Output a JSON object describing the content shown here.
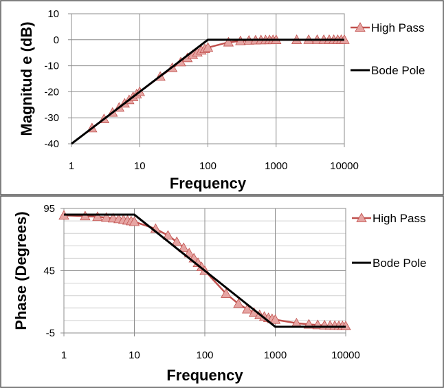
{
  "chart_data": [
    {
      "type": "line",
      "xscale": "log",
      "xlabel": "Frequency",
      "ylabel": "Magnitud e (dB)",
      "xlim": [
        1,
        10000
      ],
      "ylim": [
        -40,
        10
      ],
      "xticks": [
        "1",
        "10",
        "100",
        "1000",
        "10000"
      ],
      "yticks": [
        "10",
        "0",
        "-10",
        "-20",
        "-30",
        "-40"
      ],
      "grid": true,
      "legend": "right",
      "series": [
        {
          "name": "High Pass",
          "color": "#c0504d",
          "marker": "triangle",
          "x": [
            2,
            3,
            4,
            5,
            6,
            7,
            8,
            9,
            10,
            20,
            30,
            40,
            50,
            60,
            70,
            80,
            90,
            100,
            200,
            300,
            400,
            500,
            600,
            700,
            800,
            900,
            1000,
            2000,
            3000,
            4000,
            5000,
            6000,
            7000,
            8000,
            9000,
            10000
          ],
          "y": [
            -33.98,
            -30.46,
            -27.97,
            -26.03,
            -24.46,
            -23.12,
            -21.97,
            -20.95,
            -20.04,
            -14.15,
            -10.83,
            -8.6,
            -6.99,
            -5.78,
            -4.85,
            -4.09,
            -3.5,
            -3.01,
            -0.97,
            -0.46,
            -0.26,
            -0.17,
            -0.12,
            -0.09,
            -0.07,
            -0.05,
            -0.04,
            -0.01,
            0,
            0,
            0,
            0,
            0,
            0,
            0,
            0
          ]
        },
        {
          "name": "Bode Pole",
          "color": "#000000",
          "marker": "none",
          "x": [
            1,
            100,
            10000
          ],
          "y": [
            -40,
            0,
            0
          ]
        }
      ]
    },
    {
      "type": "line",
      "xscale": "log",
      "xlabel": "Frequency",
      "ylabel": "Phase (Degrees)",
      "xlim": [
        1,
        10000
      ],
      "ylim": [
        -5,
        95
      ],
      "xticks": [
        "1",
        "10",
        "100",
        "1000",
        "10000"
      ],
      "yticks": [
        "95",
        "45",
        "-5"
      ],
      "grid": true,
      "legend": "right",
      "series": [
        {
          "name": "High Pass",
          "color": "#c0504d",
          "marker": "triangle",
          "x": [
            1,
            2,
            3,
            4,
            5,
            6,
            7,
            8,
            9,
            10,
            20,
            30,
            40,
            50,
            60,
            70,
            80,
            90,
            100,
            200,
            300,
            400,
            500,
            600,
            700,
            800,
            900,
            1000,
            2000,
            3000,
            4000,
            5000,
            6000,
            7000,
            8000,
            9000,
            10000
          ],
          "y": [
            89.43,
            88.85,
            88.28,
            87.71,
            87.14,
            86.57,
            86.0,
            85.43,
            84.86,
            84.29,
            78.69,
            73.3,
            68.2,
            63.43,
            59.04,
            55.01,
            51.34,
            48.01,
            45,
            26.57,
            18.43,
            14.04,
            11.31,
            9.46,
            8.13,
            7.13,
            6.34,
            5.71,
            2.86,
            1.91,
            1.43,
            1.15,
            0.95,
            0.82,
            0.72,
            0.64,
            0.57
          ]
        },
        {
          "name": "Bode Pole",
          "color": "#000000",
          "marker": "none",
          "x": [
            1,
            10,
            1000,
            10000
          ],
          "y": [
            90,
            90,
            0,
            0
          ]
        }
      ]
    }
  ]
}
